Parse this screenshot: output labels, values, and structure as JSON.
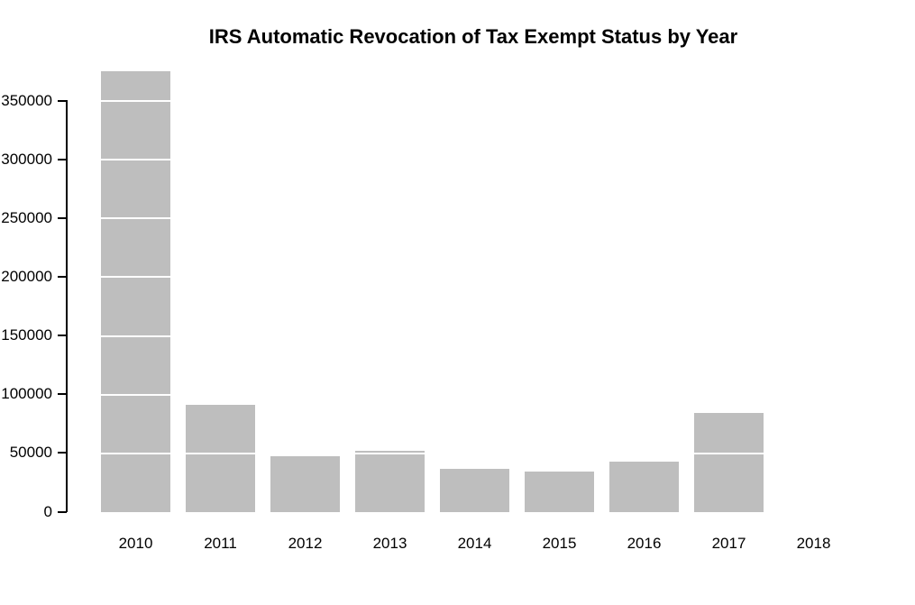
{
  "chart_data": {
    "type": "bar",
    "title": "IRS Automatic Revocation of Tax Exempt Status by Year",
    "categories": [
      "2010",
      "2011",
      "2012",
      "2013",
      "2014",
      "2015",
      "2016",
      "2017",
      "2018"
    ],
    "values": [
      375000,
      91300,
      47500,
      52000,
      36800,
      34500,
      43000,
      84400,
      0
    ],
    "xlabel": "",
    "ylabel": "",
    "ylim": [
      0,
      375000
    ],
    "yticks": [
      0,
      50000,
      100000,
      150000,
      200000,
      250000,
      300000,
      350000
    ],
    "ytick_labels": [
      "0",
      "50000",
      "100000",
      "150000",
      "200000",
      "250000",
      "300000",
      "350000"
    ],
    "bar_color": "#BEBEBE",
    "gridline_color": "#FFFFFF",
    "text_color": "#000000",
    "background_color": "#FFFFFF",
    "grid": "white horizontal lines drawn over bars at 50000 intervals",
    "legend": "none",
    "note_2010_bar": "clipped at top of plot region",
    "note_2018_bar": "zero / no bar drawn"
  }
}
